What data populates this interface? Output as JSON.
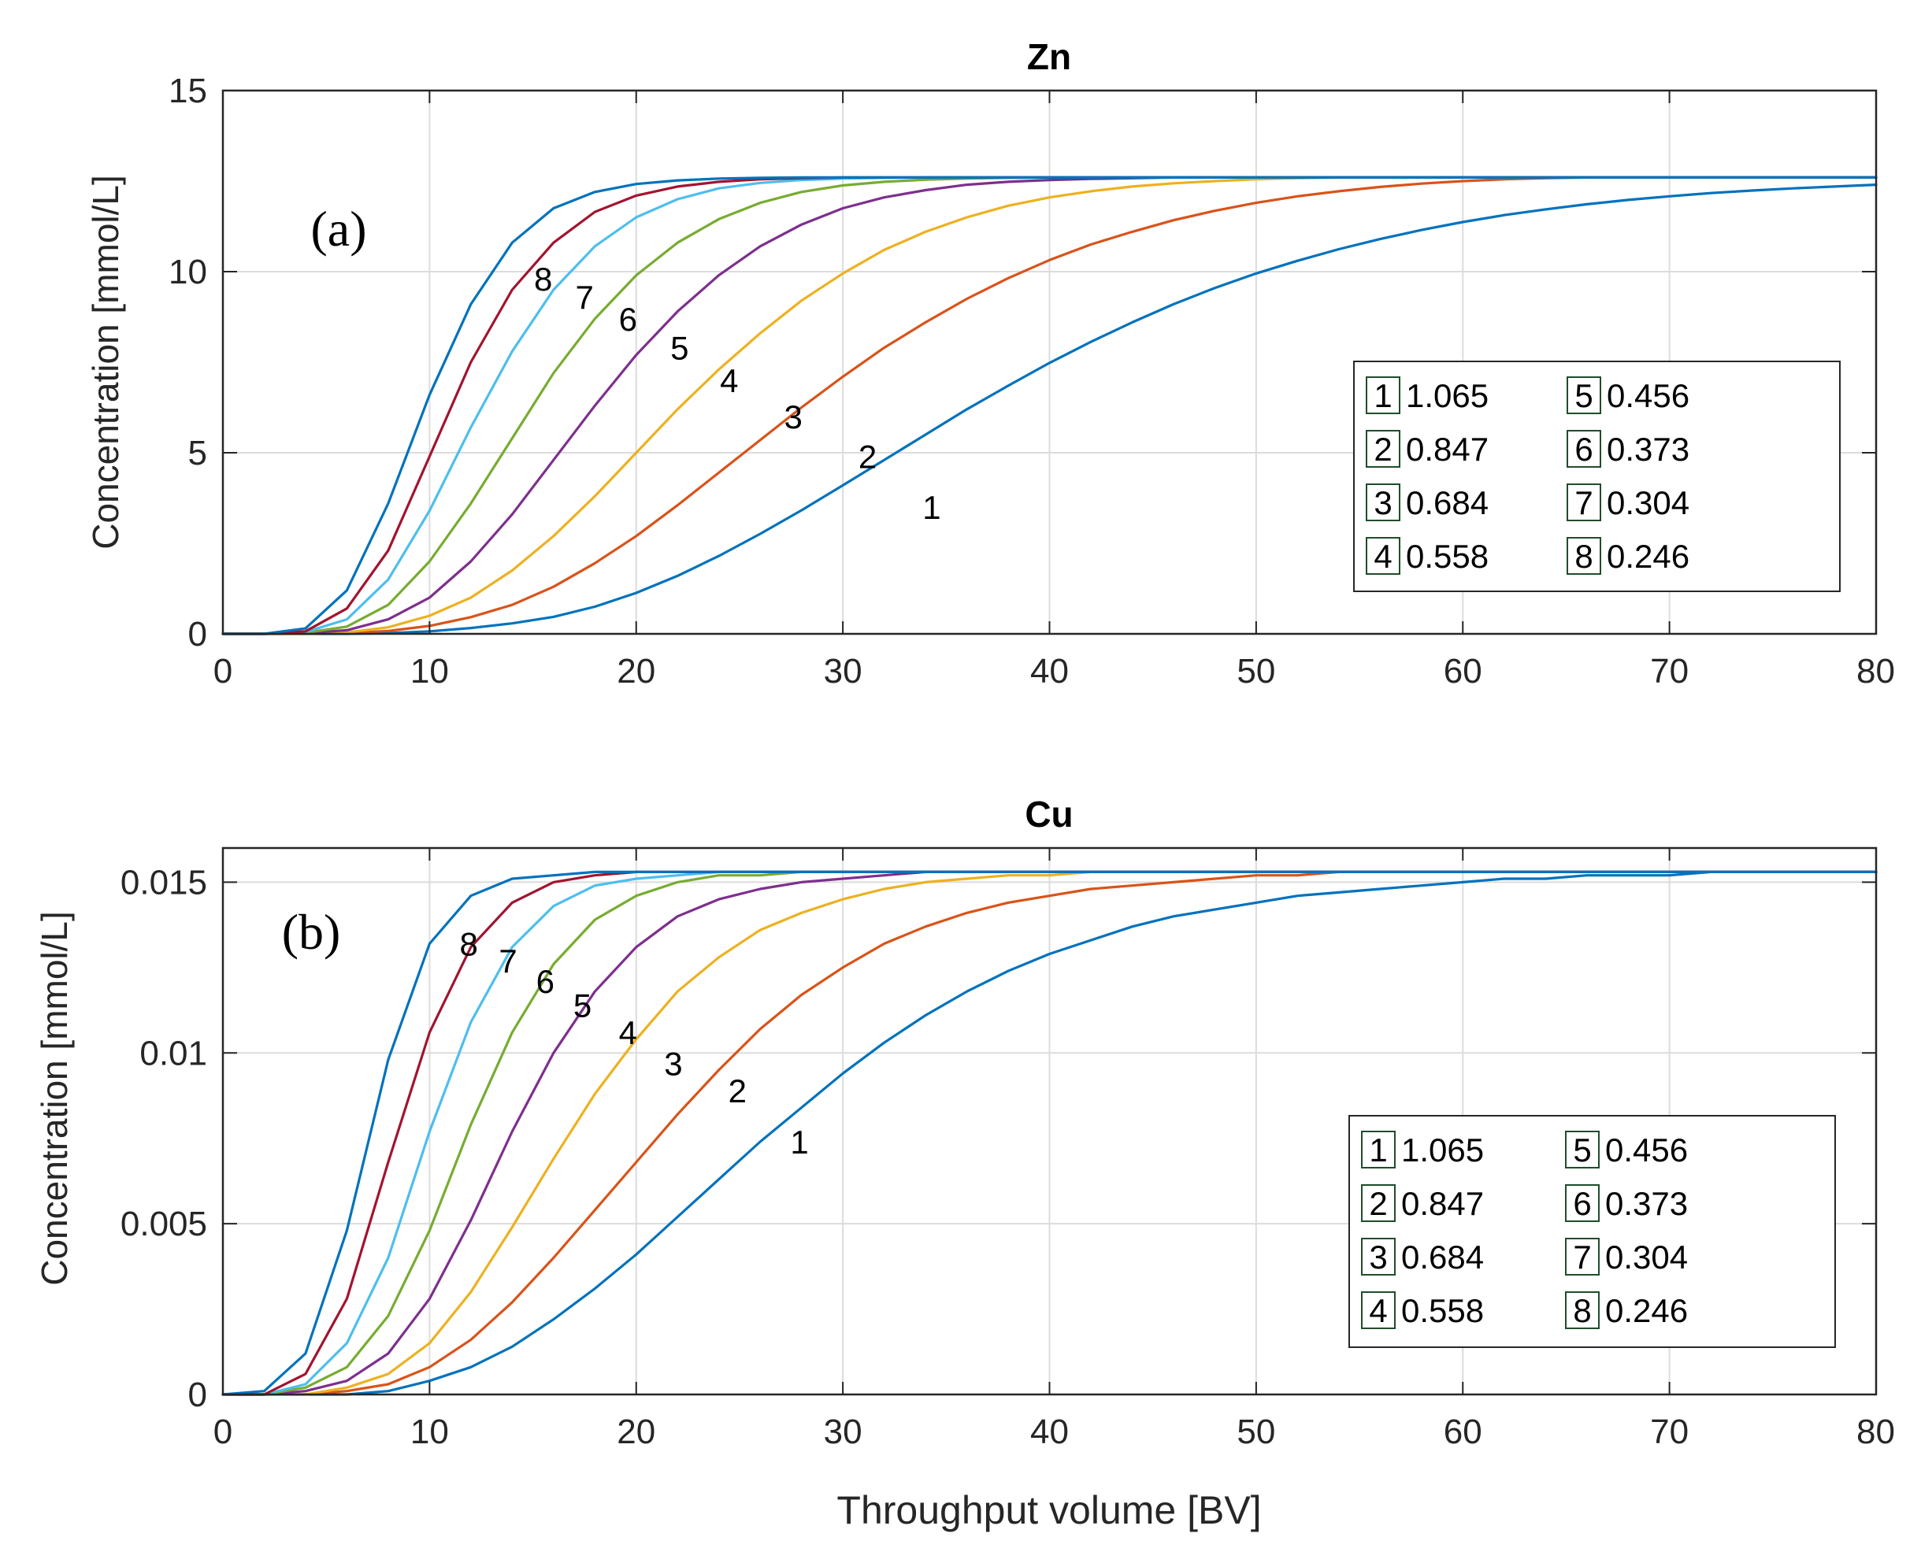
{
  "chart_data": [
    {
      "type": "line",
      "title": "Zn",
      "panel_label": "(a)",
      "xlabel": "",
      "ylabel": "Concentration [mmol/L]",
      "xlim": [
        0,
        80
      ],
      "ylim": [
        0,
        15
      ],
      "xticks": [
        0,
        10,
        20,
        30,
        40,
        50,
        60,
        70,
        80
      ],
      "xtick_labels": [
        "0",
        "10",
        "20",
        "30",
        "40",
        "50",
        "60",
        "70",
        "80"
      ],
      "yticks": [
        0,
        5,
        10,
        15
      ],
      "ytick_labels": [
        "0",
        "5",
        "10",
        "15"
      ],
      "grid": true,
      "legend_position": "right",
      "x": [
        0,
        2,
        4,
        6,
        8,
        10,
        12,
        14,
        16,
        18,
        20,
        22,
        24,
        26,
        28,
        30,
        32,
        34,
        36,
        38,
        40,
        42,
        44,
        46,
        48,
        50,
        52,
        54,
        56,
        58,
        60,
        62,
        64,
        66,
        68,
        70,
        72,
        74,
        76,
        78,
        80
      ],
      "series": [
        {
          "name": "1",
          "legend_value": "1.065",
          "color": "#0072BD",
          "label_at": [
            34.3,
            3.5
          ],
          "values": [
            0.0,
            0.0,
            0.0,
            0.0,
            0.02,
            0.07,
            0.16,
            0.29,
            0.47,
            0.75,
            1.13,
            1.6,
            2.15,
            2.76,
            3.41,
            4.1,
            4.8,
            5.5,
            6.2,
            6.85,
            7.48,
            8.06,
            8.6,
            9.1,
            9.55,
            9.95,
            10.3,
            10.62,
            10.9,
            11.15,
            11.37,
            11.56,
            11.72,
            11.86,
            11.98,
            12.08,
            12.17,
            12.24,
            12.3,
            12.35,
            12.4
          ]
        },
        {
          "name": "2",
          "legend_value": "0.847",
          "color": "#D95319",
          "label_at": [
            31.2,
            4.9
          ],
          "values": [
            0.0,
            0.0,
            0.0,
            0.02,
            0.08,
            0.22,
            0.46,
            0.8,
            1.3,
            1.95,
            2.7,
            3.55,
            4.45,
            5.35,
            6.25,
            7.1,
            7.9,
            8.6,
            9.25,
            9.82,
            10.32,
            10.75,
            11.1,
            11.42,
            11.68,
            11.9,
            12.08,
            12.22,
            12.34,
            12.43,
            12.5,
            12.55,
            12.58,
            12.6,
            12.6,
            12.6,
            12.6,
            12.6,
            12.6,
            12.6,
            12.6
          ]
        },
        {
          "name": "3",
          "legend_value": "0.684",
          "color": "#EDB120",
          "label_at": [
            27.6,
            6.0
          ],
          "values": [
            0.0,
            0.0,
            0.0,
            0.04,
            0.18,
            0.5,
            1.0,
            1.75,
            2.7,
            3.8,
            5.0,
            6.2,
            7.3,
            8.3,
            9.2,
            9.95,
            10.6,
            11.1,
            11.5,
            11.82,
            12.05,
            12.22,
            12.35,
            12.44,
            12.5,
            12.55,
            12.58,
            12.6,
            12.6,
            12.6,
            12.6,
            12.6,
            12.6,
            12.6,
            12.6,
            12.6,
            12.6,
            12.6,
            12.6,
            12.6,
            12.6
          ]
        },
        {
          "name": "4",
          "legend_value": "0.558",
          "color": "#7E2F8E",
          "label_at": [
            24.5,
            7.0
          ],
          "values": [
            0.0,
            0.0,
            0.02,
            0.1,
            0.4,
            1.0,
            2.0,
            3.3,
            4.8,
            6.3,
            7.7,
            8.9,
            9.9,
            10.7,
            11.3,
            11.75,
            12.05,
            12.25,
            12.4,
            12.48,
            12.53,
            12.56,
            12.58,
            12.6,
            12.6,
            12.6,
            12.6,
            12.6,
            12.6,
            12.6,
            12.6,
            12.6,
            12.6,
            12.6,
            12.6,
            12.6,
            12.6,
            12.6,
            12.6,
            12.6,
            12.6
          ]
        },
        {
          "name": "5",
          "legend_value": "0.456",
          "color": "#77AC30",
          "label_at": [
            22.1,
            7.9
          ],
          "values": [
            0.0,
            0.0,
            0.03,
            0.2,
            0.8,
            2.0,
            3.6,
            5.4,
            7.2,
            8.7,
            9.9,
            10.8,
            11.45,
            11.9,
            12.2,
            12.38,
            12.48,
            12.54,
            12.57,
            12.59,
            12.6,
            12.6,
            12.6,
            12.6,
            12.6,
            12.6,
            12.6,
            12.6,
            12.6,
            12.6,
            12.6,
            12.6,
            12.6,
            12.6,
            12.6,
            12.6,
            12.6,
            12.6,
            12.6,
            12.6,
            12.6
          ]
        },
        {
          "name": "6",
          "legend_value": "0.373",
          "color": "#4DBEEE",
          "label_at": [
            19.6,
            8.7
          ],
          "values": [
            0.0,
            0.0,
            0.05,
            0.4,
            1.5,
            3.4,
            5.7,
            7.8,
            9.5,
            10.7,
            11.5,
            12.0,
            12.3,
            12.45,
            12.53,
            12.57,
            12.59,
            12.6,
            12.6,
            12.6,
            12.6,
            12.6,
            12.6,
            12.6,
            12.6,
            12.6,
            12.6,
            12.6,
            12.6,
            12.6,
            12.6,
            12.6,
            12.6,
            12.6,
            12.6,
            12.6,
            12.6,
            12.6,
            12.6,
            12.6,
            12.6
          ]
        },
        {
          "name": "7",
          "legend_value": "0.304",
          "color": "#A2142F",
          "label_at": [
            17.5,
            9.3
          ],
          "values": [
            0.0,
            0.0,
            0.07,
            0.7,
            2.3,
            4.9,
            7.5,
            9.5,
            10.8,
            11.65,
            12.1,
            12.35,
            12.48,
            12.55,
            12.58,
            12.6,
            12.6,
            12.6,
            12.6,
            12.6,
            12.6,
            12.6,
            12.6,
            12.6,
            12.6,
            12.6,
            12.6,
            12.6,
            12.6,
            12.6,
            12.6,
            12.6,
            12.6,
            12.6,
            12.6,
            12.6,
            12.6,
            12.6,
            12.6,
            12.6,
            12.6
          ]
        },
        {
          "name": "8",
          "legend_value": "0.246",
          "color": "#0072BD",
          "label_at": [
            15.5,
            9.8
          ],
          "values": [
            0.0,
            0.0,
            0.15,
            1.2,
            3.6,
            6.6,
            9.1,
            10.8,
            11.75,
            12.2,
            12.42,
            12.52,
            12.57,
            12.59,
            12.6,
            12.6,
            12.6,
            12.6,
            12.6,
            12.6,
            12.6,
            12.6,
            12.6,
            12.6,
            12.6,
            12.6,
            12.6,
            12.6,
            12.6,
            12.6,
            12.6,
            12.6,
            12.6,
            12.6,
            12.6,
            12.6,
            12.6,
            12.6,
            12.6,
            12.6,
            12.6
          ]
        }
      ]
    },
    {
      "type": "line",
      "title": "Cu",
      "panel_label": "(b)",
      "xlabel": "Throughput volume [BV]",
      "ylabel": "Concentration [mmol/L]",
      "xlim": [
        0,
        80
      ],
      "ylim": [
        0,
        0.016
      ],
      "xticks": [
        0,
        10,
        20,
        30,
        40,
        50,
        60,
        70,
        80
      ],
      "xtick_labels": [
        "0",
        "10",
        "20",
        "30",
        "40",
        "50",
        "60",
        "70",
        "80"
      ],
      "yticks": [
        0,
        0.005,
        0.01,
        0.015
      ],
      "ytick_labels": [
        "0",
        "0.005",
        "0.01",
        "0.015"
      ],
      "grid": true,
      "legend_position": "right",
      "x": [
        0,
        2,
        4,
        6,
        8,
        10,
        12,
        14,
        16,
        18,
        20,
        22,
        24,
        26,
        28,
        30,
        32,
        34,
        36,
        38,
        40,
        42,
        44,
        46,
        48,
        50,
        52,
        54,
        56,
        58,
        60,
        62,
        64,
        66,
        68,
        70,
        72,
        74,
        76,
        78,
        80
      ],
      "series": [
        {
          "name": "1",
          "legend_value": "1.065",
          "color": "#0072BD",
          "label_at": [
            27.9,
            0.0074
          ],
          "values": [
            0.0,
            0.0,
            0.0,
            0.0,
            0.0001,
            0.0004,
            0.0008,
            0.0014,
            0.0022,
            0.0031,
            0.0041,
            0.0052,
            0.0063,
            0.0074,
            0.0084,
            0.0094,
            0.0103,
            0.0111,
            0.0118,
            0.0124,
            0.0129,
            0.0133,
            0.0137,
            0.014,
            0.0142,
            0.0144,
            0.0146,
            0.0147,
            0.0148,
            0.0149,
            0.015,
            0.0151,
            0.0151,
            0.0152,
            0.0152,
            0.0152,
            0.0153,
            0.0153,
            0.0153,
            0.0153,
            0.0153
          ]
        },
        {
          "name": "2",
          "legend_value": "0.847",
          "color": "#D95319",
          "label_at": [
            24.9,
            0.0089
          ],
          "values": [
            0.0,
            0.0,
            0.0,
            0.0001,
            0.0003,
            0.0008,
            0.0016,
            0.0027,
            0.004,
            0.0054,
            0.0068,
            0.0082,
            0.0095,
            0.0107,
            0.0117,
            0.0125,
            0.0132,
            0.0137,
            0.0141,
            0.0144,
            0.0146,
            0.0148,
            0.0149,
            0.015,
            0.0151,
            0.0152,
            0.0152,
            0.0153,
            0.0153,
            0.0153,
            0.0153,
            0.0153,
            0.0153,
            0.0153,
            0.0153,
            0.0153,
            0.0153,
            0.0153,
            0.0153,
            0.0153,
            0.0153
          ]
        },
        {
          "name": "3",
          "legend_value": "0.684",
          "color": "#EDB120",
          "label_at": [
            21.8,
            0.0097
          ],
          "values": [
            0.0,
            0.0,
            0.0,
            0.0002,
            0.0006,
            0.0015,
            0.003,
            0.0049,
            0.0069,
            0.0088,
            0.0104,
            0.0118,
            0.0128,
            0.0136,
            0.0141,
            0.0145,
            0.0148,
            0.015,
            0.0151,
            0.0152,
            0.0152,
            0.0153,
            0.0153,
            0.0153,
            0.0153,
            0.0153,
            0.0153,
            0.0153,
            0.0153,
            0.0153,
            0.0153,
            0.0153,
            0.0153,
            0.0153,
            0.0153,
            0.0153,
            0.0153,
            0.0153,
            0.0153,
            0.0153,
            0.0153
          ]
        },
        {
          "name": "4",
          "legend_value": "0.558",
          "color": "#7E2F8E",
          "label_at": [
            19.6,
            0.0106
          ],
          "values": [
            0.0,
            0.0,
            0.0001,
            0.0004,
            0.0012,
            0.0028,
            0.0051,
            0.0077,
            0.01,
            0.0118,
            0.0131,
            0.014,
            0.0145,
            0.0148,
            0.015,
            0.0151,
            0.0152,
            0.0153,
            0.0153,
            0.0153,
            0.0153,
            0.0153,
            0.0153,
            0.0153,
            0.0153,
            0.0153,
            0.0153,
            0.0153,
            0.0153,
            0.0153,
            0.0153,
            0.0153,
            0.0153,
            0.0153,
            0.0153,
            0.0153,
            0.0153,
            0.0153,
            0.0153,
            0.0153,
            0.0153
          ]
        },
        {
          "name": "5",
          "legend_value": "0.456",
          "color": "#77AC30",
          "label_at": [
            17.4,
            0.0114
          ],
          "values": [
            0.0,
            0.0,
            0.0002,
            0.0008,
            0.0023,
            0.0048,
            0.0079,
            0.0106,
            0.0126,
            0.0139,
            0.0146,
            0.015,
            0.0152,
            0.0152,
            0.0153,
            0.0153,
            0.0153,
            0.0153,
            0.0153,
            0.0153,
            0.0153,
            0.0153,
            0.0153,
            0.0153,
            0.0153,
            0.0153,
            0.0153,
            0.0153,
            0.0153,
            0.0153,
            0.0153,
            0.0153,
            0.0153,
            0.0153,
            0.0153,
            0.0153,
            0.0153,
            0.0153,
            0.0153,
            0.0153,
            0.0153
          ]
        },
        {
          "name": "6",
          "legend_value": "0.373",
          "color": "#4DBEEE",
          "label_at": [
            15.6,
            0.0121
          ],
          "values": [
            0.0,
            0.0,
            0.0003,
            0.0015,
            0.004,
            0.0077,
            0.0109,
            0.0131,
            0.0143,
            0.0149,
            0.0151,
            0.0152,
            0.0153,
            0.0153,
            0.0153,
            0.0153,
            0.0153,
            0.0153,
            0.0153,
            0.0153,
            0.0153,
            0.0153,
            0.0153,
            0.0153,
            0.0153,
            0.0153,
            0.0153,
            0.0153,
            0.0153,
            0.0153,
            0.0153,
            0.0153,
            0.0153,
            0.0153,
            0.0153,
            0.0153,
            0.0153,
            0.0153,
            0.0153,
            0.0153,
            0.0153
          ]
        },
        {
          "name": "7",
          "legend_value": "0.304",
          "color": "#A2142F",
          "label_at": [
            13.8,
            0.0127
          ],
          "values": [
            0.0,
            0.0,
            0.0006,
            0.0028,
            0.0068,
            0.0106,
            0.0131,
            0.0144,
            0.015,
            0.0152,
            0.0153,
            0.0153,
            0.0153,
            0.0153,
            0.0153,
            0.0153,
            0.0153,
            0.0153,
            0.0153,
            0.0153,
            0.0153,
            0.0153,
            0.0153,
            0.0153,
            0.0153,
            0.0153,
            0.0153,
            0.0153,
            0.0153,
            0.0153,
            0.0153,
            0.0153,
            0.0153,
            0.0153,
            0.0153,
            0.0153,
            0.0153,
            0.0153,
            0.0153,
            0.0153,
            0.0153
          ]
        },
        {
          "name": "8",
          "legend_value": "0.246",
          "color": "#0072BD",
          "label_at": [
            11.9,
            0.0132
          ],
          "values": [
            0.0,
            0.0001,
            0.0012,
            0.0048,
            0.0098,
            0.0132,
            0.0146,
            0.0151,
            0.0152,
            0.0153,
            0.0153,
            0.0153,
            0.0153,
            0.0153,
            0.0153,
            0.0153,
            0.0153,
            0.0153,
            0.0153,
            0.0153,
            0.0153,
            0.0153,
            0.0153,
            0.0153,
            0.0153,
            0.0153,
            0.0153,
            0.0153,
            0.0153,
            0.0153,
            0.0153,
            0.0153,
            0.0153,
            0.0153,
            0.0153,
            0.0153,
            0.0153,
            0.0153,
            0.0153,
            0.0153,
            0.0153
          ]
        }
      ]
    }
  ]
}
